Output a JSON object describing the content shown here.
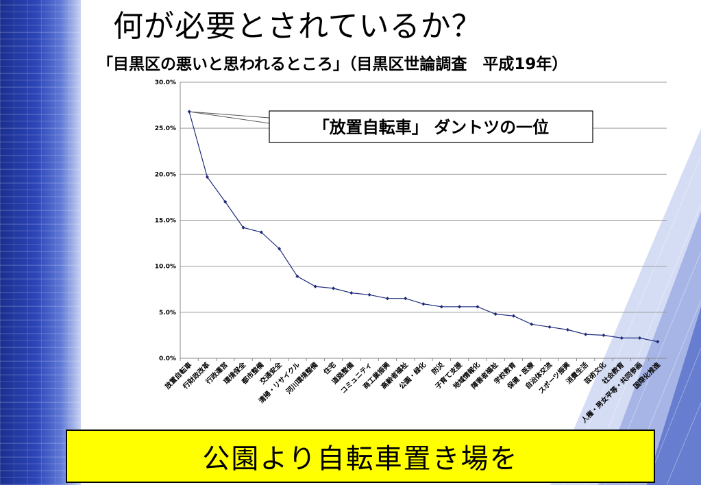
{
  "slide": {
    "title": "何が必要とされているか？",
    "subtitle": "「目黒区の悪いと思われるところ」（目黒区世論調査　平成19年）",
    "banner": "公園より自転車置き場を"
  },
  "chart_data": {
    "type": "line",
    "title": "",
    "xlabel": "",
    "ylabel": "",
    "ylim": [
      0,
      30
    ],
    "y_ticks": [
      "0.0%",
      "5.0%",
      "10.0%",
      "15.0%",
      "20.0%",
      "25.0%",
      "30.0%"
    ],
    "grid": true,
    "categories": [
      "放置自転車",
      "行財政改革",
      "行政運営",
      "環境保全",
      "都市整備",
      "交通安全",
      "清掃・リサイクル",
      "河川環境整備",
      "住宅",
      "道路整備",
      "コミュニティ",
      "商工業振興",
      "高齢者福祉",
      "公園・緑化",
      "防災",
      "子育て支援",
      "地域情報化",
      "障害者福祉",
      "学校教育",
      "保健・医療",
      "自治体交流",
      "スポーツ振興",
      "消費生活",
      "芸術文化",
      "社会教育",
      "人権・男女平等・共同参画",
      "国際化推進"
    ],
    "values": [
      26.8,
      19.7,
      17.0,
      14.2,
      13.7,
      11.9,
      8.9,
      7.8,
      7.6,
      7.1,
      6.9,
      6.5,
      6.5,
      5.9,
      5.6,
      5.6,
      5.6,
      4.8,
      4.6,
      3.7,
      3.4,
      3.1,
      2.6,
      2.5,
      2.2,
      2.2,
      1.8
    ],
    "series_color": "#1f2a7a",
    "annotation": "「放置自転車」 ダントツの一位"
  }
}
